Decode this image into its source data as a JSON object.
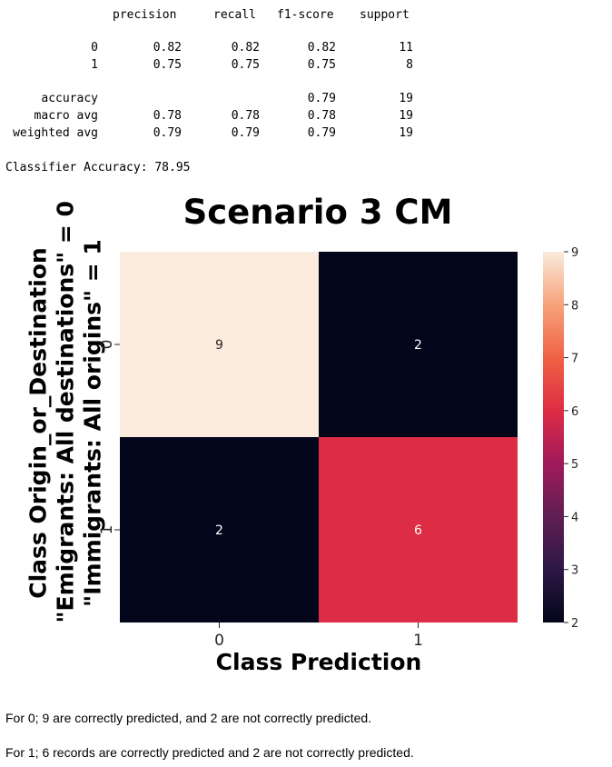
{
  "report": {
    "headers": [
      "precision",
      "recall",
      "f1-score",
      "support"
    ],
    "class_rows": [
      {
        "label": "0",
        "precision": "0.82",
        "recall": "0.82",
        "f1": "0.82",
        "support": "11"
      },
      {
        "label": "1",
        "precision": "0.75",
        "recall": "0.75",
        "f1": "0.75",
        "support": "8"
      }
    ],
    "summary_rows": [
      {
        "label": "accuracy",
        "precision": "",
        "recall": "",
        "f1": "0.79",
        "support": "19"
      },
      {
        "label": "macro avg",
        "precision": "0.78",
        "recall": "0.78",
        "f1": "0.78",
        "support": "19"
      },
      {
        "label": "weighted avg",
        "precision": "0.79",
        "recall": "0.79",
        "f1": "0.79",
        "support": "19"
      }
    ],
    "accuracy_line": "Classifier Accuracy: 78.95"
  },
  "chart_data": {
    "type": "heatmap",
    "title": "Scenario 3 CM",
    "xlabel": "Class Prediction",
    "ylabel_lines": [
      "Class Origin_or_Destination",
      "\"Emigrants: All destinations\" = 0",
      "\"Immigrants: All origins\" = 1"
    ],
    "x_categories": [
      "0",
      "1"
    ],
    "y_categories": [
      "0",
      "1"
    ],
    "matrix": [
      [
        9,
        2
      ],
      [
        2,
        6
      ]
    ],
    "colorbar": {
      "min": 2,
      "max": 9,
      "ticks": [
        "9",
        "8",
        "7",
        "6",
        "5",
        "4",
        "3",
        "2"
      ]
    },
    "colormap": "rocket"
  },
  "notes": [
    "For 0; 9 are correctly predicted, and 2 are not correctly predicted.",
    "For 1; 6 records are correctly predicted and 2 are not correctly predicted."
  ]
}
